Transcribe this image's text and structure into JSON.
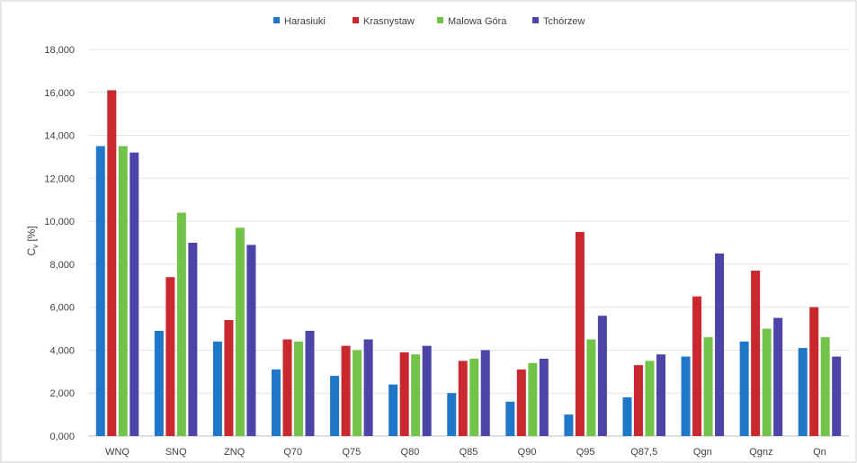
{
  "chart_data": {
    "type": "bar",
    "title": "",
    "xlabel": "",
    "ylabel": "Cv [%]",
    "ylabel_main": "C",
    "ylabel_sub": "v",
    "ylabel_unit": " [%]",
    "ylim": [
      0,
      18
    ],
    "y_ticks": [
      "0,000",
      "2,000",
      "4,000",
      "6,000",
      "8,000",
      "10,000",
      "12,000",
      "14,000",
      "16,000",
      "18,000"
    ],
    "grid": true,
    "legend_position": "top",
    "categories": [
      "WNQ",
      "SNQ",
      "ZNQ",
      "Q70",
      "Q75",
      "Q80",
      "Q85",
      "Q90",
      "Q95",
      "Q87,5",
      "Qgn",
      "Qgnz",
      "Qn"
    ],
    "series": [
      {
        "name": "Harasiuki",
        "color": "#1f77c9",
        "values": [
          13.5,
          4.9,
          4.4,
          3.1,
          2.8,
          2.4,
          2.0,
          1.6,
          1.0,
          1.8,
          3.7,
          4.4,
          4.1
        ]
      },
      {
        "name": "Krasnystaw",
        "color": "#c8282e",
        "values": [
          16.1,
          7.4,
          5.4,
          4.5,
          4.2,
          3.9,
          3.5,
          3.1,
          9.5,
          3.3,
          6.5,
          7.7,
          6.0
        ]
      },
      {
        "name": "Malowa Góra",
        "color": "#72c34a",
        "values": [
          13.5,
          10.4,
          9.7,
          4.4,
          4.0,
          3.8,
          3.6,
          3.4,
          4.5,
          3.5,
          4.6,
          5.0,
          4.6
        ]
      },
      {
        "name": "Tchórzew",
        "color": "#4c44a6",
        "values": [
          13.2,
          9.0,
          8.9,
          4.9,
          4.5,
          4.2,
          4.0,
          3.6,
          5.6,
          3.8,
          8.5,
          5.5,
          3.7
        ]
      }
    ]
  }
}
